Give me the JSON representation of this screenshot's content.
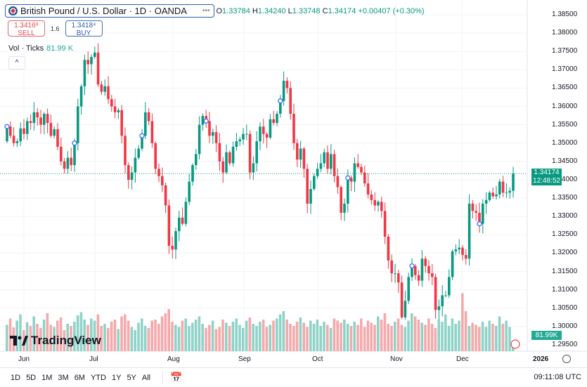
{
  "header": {
    "symbol": "British Pound / U.S. Dollar · 1D · OANDA",
    "open_label": "O",
    "open": "1.33784",
    "high_label": "H",
    "high": "1.34240",
    "low_label": "L",
    "low": "1.33748",
    "close_label": "C",
    "close": "1.34174",
    "change": "+0.00407 (+0.30%)"
  },
  "trade": {
    "sell_price": "1.3416⁸",
    "sell_label": "SELL",
    "spread": "1.6",
    "buy_price": "1.3418⁴",
    "buy_label": "BUY"
  },
  "volume_indicator": {
    "label": "Vol · Ticks",
    "value": "81.99 K"
  },
  "logo": "TradingView",
  "price_axis": {
    "ticks": [
      "1.38500",
      "1.38000",
      "1.37500",
      "1.37000",
      "1.36500",
      "1.36000",
      "1.35500",
      "1.35000",
      "1.34500",
      "1.34000",
      "1.33500",
      "1.33000",
      "1.32500",
      "1.32000",
      "1.31500",
      "1.31000",
      "1.30500",
      "1.30000",
      "1.29500"
    ],
    "current_price": "1.34174",
    "countdown": "12:48:52",
    "volume_tag": "81.99K"
  },
  "time_axis": [
    "Jun",
    "Jul",
    "Aug",
    "Sep",
    "Oct",
    "Nov",
    "Dec",
    "2026"
  ],
  "ranges": [
    "1D",
    "5D",
    "1M",
    "3M",
    "6M",
    "YTD",
    "1Y",
    "5Y",
    "All"
  ],
  "clock": "09:11:08 UTC",
  "colors": {
    "up": "#089981",
    "down": "#f23645",
    "vol_up": "#8fd3c8",
    "vol_down": "#f5a9ab",
    "accent": "#2962ff"
  },
  "chart_data": {
    "type": "candlestick",
    "ylim": [
      1.295,
      1.385
    ],
    "first_open": 1.3505,
    "closes": [
      1.3545,
      1.352,
      1.35,
      1.3505,
      1.354,
      1.3525,
      1.356,
      1.3555,
      1.3584,
      1.357,
      1.355,
      1.358,
      1.3555,
      1.352,
      1.3538,
      1.349,
      1.345,
      1.343,
      1.346,
      1.344,
      1.35,
      1.36,
      1.3655,
      1.3727,
      1.3715,
      1.3735,
      1.3747,
      1.366,
      1.364,
      1.3655,
      1.362,
      1.36,
      1.3584,
      1.359,
      1.352,
      1.344,
      1.34,
      1.342,
      1.346,
      1.3485,
      1.352,
      1.3584,
      1.356,
      1.35,
      1.343,
      1.341,
      1.3385,
      1.333,
      1.322,
      1.321,
      1.326,
      1.3297,
      1.328,
      1.334,
      1.3395,
      1.344,
      1.347,
      1.355,
      1.3574,
      1.356,
      1.352,
      1.353,
      1.35,
      1.345,
      1.342,
      1.3475,
      1.3445,
      1.349,
      1.3505,
      1.351,
      1.3525,
      1.3525,
      1.342,
      1.3445,
      1.3505,
      1.3545,
      1.3525,
      1.3515,
      1.3565,
      1.3555,
      1.358,
      1.3615,
      1.367,
      1.365,
      1.358,
      1.35,
      1.3455,
      1.3485,
      1.343,
      1.3335,
      1.3375,
      1.341,
      1.343,
      1.3445,
      1.3475,
      1.343,
      1.347,
      1.341,
      1.338,
      1.331,
      1.3335,
      1.3405,
      1.3395,
      1.3445,
      1.3435,
      1.342,
      1.339,
      1.336,
      1.3345,
      1.333,
      1.334,
      1.3315,
      1.3245,
      1.318,
      1.3145,
      1.3145,
      1.312,
      1.3025,
      1.307,
      1.3135,
      1.3165,
      1.314,
      1.3125,
      1.3185,
      1.3165,
      1.3145,
      1.3135,
      1.3045,
      1.3055,
      1.3085,
      1.3085,
      1.3135,
      1.3205,
      1.321,
      1.3215,
      1.3195,
      1.3185,
      1.3335,
      1.3315,
      1.331,
      1.328,
      1.3335,
      1.3345,
      1.3365,
      1.3355,
      1.336,
      1.3395,
      1.3365,
      1.3365,
      1.337,
      1.3417
    ],
    "volume": [
      50,
      62,
      45,
      58,
      70,
      40,
      55,
      48,
      66,
      52,
      44,
      60,
      72,
      50,
      46,
      58,
      64,
      40,
      52,
      48,
      56,
      68,
      74,
      60,
      50,
      62,
      58,
      70,
      48,
      52,
      44,
      56,
      60,
      42,
      66,
      70,
      58,
      46,
      40,
      54,
      62,
      48,
      44,
      58,
      60,
      52,
      66,
      72,
      80,
      56,
      50,
      46,
      58,
      62,
      48,
      54,
      60,
      66,
      52,
      44,
      50,
      58,
      42,
      46,
      60,
      54,
      48,
      56,
      62,
      50,
      44,
      58,
      64,
      52,
      48,
      56,
      60,
      46,
      50,
      58,
      62,
      70,
      76,
      60,
      52,
      48,
      56,
      64,
      54,
      46,
      58,
      52,
      60,
      48,
      56,
      50,
      44,
      62,
      58,
      54,
      60,
      52,
      48,
      56,
      50,
      62,
      46,
      58,
      54,
      50,
      66,
      60,
      72,
      52,
      48,
      56,
      62,
      50,
      46,
      58,
      72,
      66,
      60,
      54,
      50,
      62,
      52,
      44,
      60,
      56,
      70,
      48,
      62,
      52,
      58,
      110,
      76,
      48,
      54,
      50,
      46,
      56,
      46,
      58,
      52,
      48,
      66,
      52,
      58,
      46,
      10
    ],
    "event_markers": [
      0,
      20,
      40,
      59,
      81,
      101,
      120,
      140
    ]
  }
}
